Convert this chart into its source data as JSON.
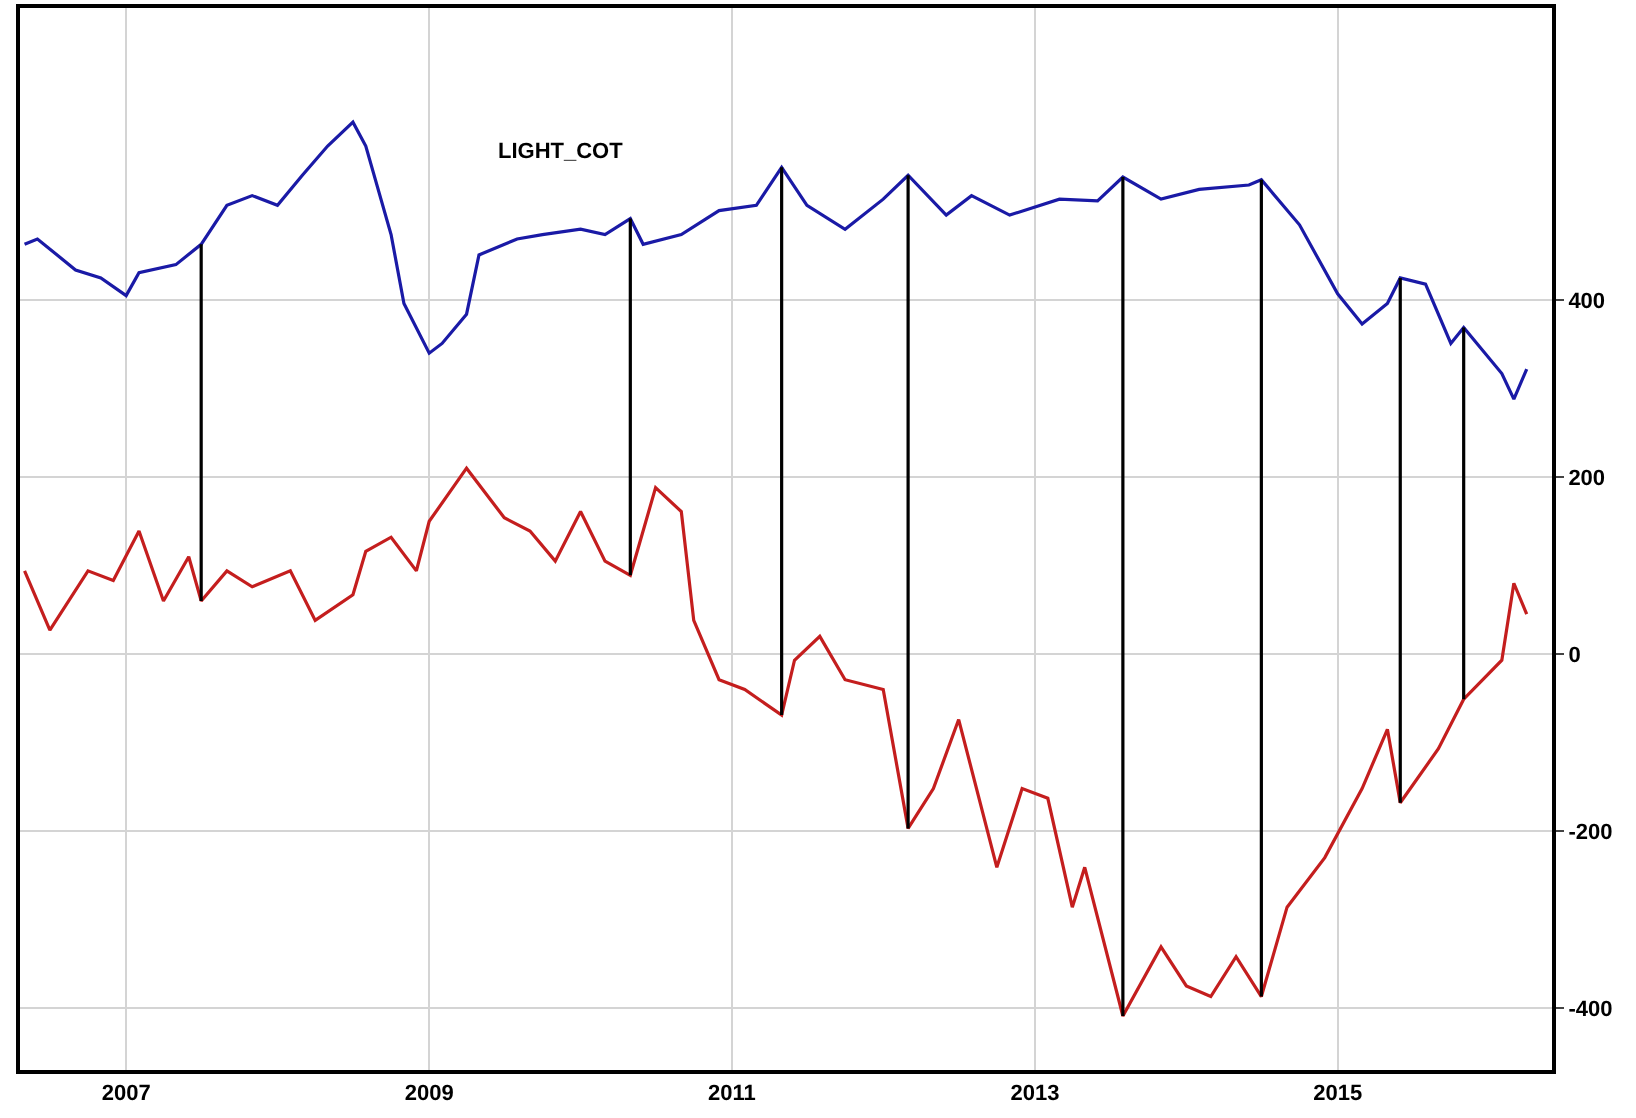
{
  "chart_data": {
    "type": "line",
    "annotations": [
      "LIGHT_COT"
    ],
    "xlim": [
      "2006-04-20",
      "2016-06-01"
    ],
    "xticks": [
      {
        "value": "2007-01-01",
        "label": "2007"
      },
      {
        "value": "2009-01-01",
        "label": "2009"
      },
      {
        "value": "2011-01-01",
        "label": "2011"
      },
      {
        "value": "2013-01-01",
        "label": "2013"
      },
      {
        "value": "2015-01-01",
        "label": "2015"
      }
    ],
    "ylim": [
      -470,
      730
    ],
    "yticks": [
      -400,
      -200,
      0,
      200,
      400
    ],
    "grid": true,
    "marker": "none",
    "line_style": "solid",
    "series": [
      {
        "color": "#1a1aa6",
        "x": [
          "2006-05",
          "2006-06",
          "2006-09",
          "2006-11",
          "2007-01",
          "2007-02",
          "2007-05",
          "2007-07",
          "2007-09",
          "2007-11",
          "2008-01",
          "2008-03",
          "2008-05",
          "2008-07",
          "2008-08",
          "2008-10",
          "2008-11",
          "2009-01",
          "2009-02",
          "2009-04",
          "2009-05",
          "2009-08",
          "2009-10",
          "2010-01",
          "2010-03",
          "2010-05",
          "2010-06",
          "2010-09",
          "2010-12",
          "2011-03",
          "2011-05",
          "2011-07",
          "2011-10",
          "2012-01",
          "2012-03",
          "2012-06",
          "2012-08",
          "2012-11",
          "2013-03",
          "2013-06",
          "2013-08",
          "2013-11",
          "2014-02",
          "2014-06",
          "2014-07",
          "2014-10",
          "2015-01",
          "2015-03",
          "2015-05",
          "2015-06",
          "2015-08",
          "2015-10",
          "2015-11",
          "2016-02",
          "2016-03",
          "2016-04"
        ],
        "values": [
          463,
          469,
          434,
          425,
          405,
          431,
          440,
          463,
          507,
          518,
          507,
          541,
          574,
          601,
          574,
          474,
          396,
          340,
          351,
          384,
          451,
          469,
          474,
          480,
          474,
          492,
          463,
          474,
          501,
          507,
          550,
          507,
          480,
          514,
          541,
          496,
          518,
          496,
          514,
          512,
          539,
          514,
          525,
          530,
          536,
          485,
          407,
          373,
          396,
          425,
          418,
          351,
          369,
          317,
          288,
          322
        ]
      },
      {
        "color": "#c41e1e",
        "x": [
          "2006-05",
          "2006-07",
          "2006-10",
          "2006-12",
          "2007-02",
          "2007-04",
          "2007-06",
          "2007-07",
          "2007-09",
          "2007-11",
          "2008-02",
          "2008-04",
          "2008-07",
          "2008-08",
          "2008-10",
          "2008-12",
          "2009-01",
          "2009-04",
          "2009-07",
          "2009-09",
          "2009-11",
          "2010-01",
          "2010-03",
          "2010-05",
          "2010-07",
          "2010-09",
          "2010-10",
          "2010-12",
          "2011-02",
          "2011-05",
          "2011-06",
          "2011-08",
          "2011-10",
          "2012-01",
          "2012-03",
          "2012-05",
          "2012-07",
          "2012-10",
          "2012-12",
          "2013-02",
          "2013-04",
          "2013-05",
          "2013-08",
          "2013-11",
          "2014-01",
          "2014-03",
          "2014-05",
          "2014-07",
          "2014-09",
          "2014-12",
          "2015-03",
          "2015-05",
          "2015-06",
          "2015-09",
          "2015-11",
          "2016-02",
          "2016-03",
          "2016-04"
        ],
        "values": [
          94,
          27,
          94,
          83,
          139,
          60,
          110,
          60,
          94,
          76,
          94,
          38,
          67,
          116,
          132,
          94,
          150,
          210,
          154,
          139,
          105,
          161,
          105,
          89,
          188,
          161,
          38,
          -29,
          -40,
          -69,
          -7,
          20,
          -29,
          -40,
          -197,
          -152,
          -74,
          -241,
          -152,
          -163,
          -286,
          -241,
          -409,
          -331,
          -375,
          -387,
          -342,
          -387,
          -286,
          -230,
          -152,
          -85,
          -168,
          -107,
          -51,
          -7,
          80,
          45
        ]
      },
      {
        "color": "#000000",
        "x": [
          "2007-07",
          "2007-07"
        ],
        "values": [
          463,
          60
        ]
      },
      {
        "color": "#000000",
        "x": [
          "2010-05",
          "2010-05"
        ],
        "values": [
          492,
          89
        ]
      },
      {
        "color": "#000000",
        "x": [
          "2011-05",
          "2011-05"
        ],
        "values": [
          550,
          -69
        ]
      },
      {
        "color": "#000000",
        "x": [
          "2012-03",
          "2012-03"
        ],
        "values": [
          541,
          -197
        ]
      },
      {
        "color": "#000000",
        "x": [
          "2013-08",
          "2013-08"
        ],
        "values": [
          539,
          -409
        ]
      },
      {
        "color": "#000000",
        "x": [
          "2014-07",
          "2014-07"
        ],
        "values": [
          536,
          -387
        ]
      },
      {
        "color": "#000000",
        "x": [
          "2015-06",
          "2015-06"
        ],
        "values": [
          425,
          -168
        ]
      },
      {
        "color": "#000000",
        "x": [
          "2015-11",
          "2015-11"
        ],
        "values": [
          369,
          -51
        ]
      }
    ]
  }
}
